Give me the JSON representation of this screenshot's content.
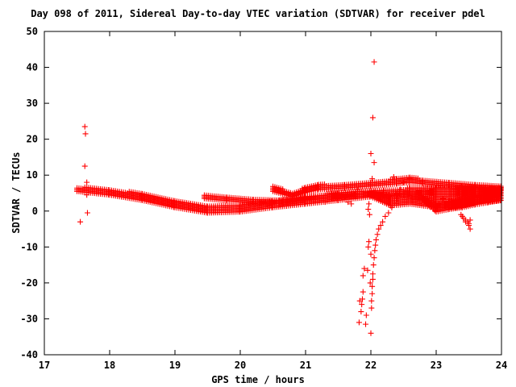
{
  "chart_data": {
    "type": "scatter",
    "title": "Day 098 of 2011, Sidereal Day-to-day VTEC variation (SDTVAR) for receiver pdel",
    "xlabel": "GPS time / hours",
    "ylabel": "SDTVAR / TECUs",
    "xlim": [
      17,
      24
    ],
    "ylim": [
      -40,
      50
    ],
    "x_ticks": [
      17,
      18,
      19,
      20,
      21,
      22,
      23,
      24
    ],
    "y_ticks": [
      -40,
      -30,
      -20,
      -10,
      0,
      10,
      20,
      30,
      40,
      50
    ],
    "marker": "+",
    "color": "#ff0000",
    "grid": false,
    "legend": "none",
    "series": [
      {
        "points": [
          [
            17.55,
            -3.0
          ],
          [
            17.62,
            23.5
          ],
          [
            17.63,
            21.5
          ],
          [
            17.62,
            12.5
          ],
          [
            17.65,
            8.0
          ],
          [
            17.66,
            -0.5
          ],
          [
            17.65,
            4.5
          ],
          [
            21.3,
            2.5
          ],
          [
            21.5,
            3.0
          ],
          [
            21.6,
            4.0
          ],
          [
            21.65,
            2.5
          ],
          [
            21.7,
            2.0
          ],
          [
            21.75,
            4.5
          ],
          [
            21.8,
            6.0
          ],
          [
            21.82,
            -31.0
          ],
          [
            21.83,
            -25.0
          ],
          [
            21.85,
            -28.0
          ],
          [
            21.86,
            -26.0
          ],
          [
            21.87,
            -24.5
          ],
          [
            21.88,
            -22.5
          ],
          [
            21.88,
            -18.0
          ],
          [
            21.9,
            -16.0
          ],
          [
            21.92,
            -31.5
          ],
          [
            21.93,
            -29.0
          ],
          [
            21.95,
            -16.5
          ],
          [
            21.96,
            -10.0
          ],
          [
            21.97,
            -8.5
          ],
          [
            21.97,
            2.0
          ],
          [
            21.96,
            0.5
          ],
          [
            21.98,
            -1.0
          ],
          [
            21.99,
            -20.0
          ],
          [
            22.0,
            -12.0
          ],
          [
            22.0,
            -34.0
          ],
          [
            22.01,
            -27.0
          ],
          [
            22.01,
            -25.0
          ],
          [
            22.02,
            -23.0
          ],
          [
            22.02,
            -21.0
          ],
          [
            22.03,
            -19.0
          ],
          [
            22.03,
            -17.5
          ],
          [
            22.04,
            -15.0
          ],
          [
            22.05,
            -13.0
          ],
          [
            22.06,
            -11.0
          ],
          [
            22.07,
            -9.5
          ],
          [
            22.08,
            -8.0
          ],
          [
            22.1,
            -6.5
          ],
          [
            22.12,
            -5.0
          ],
          [
            22.15,
            -4.0
          ],
          [
            22.18,
            -3.0
          ],
          [
            22.22,
            -1.5
          ],
          [
            22.27,
            -0.5
          ],
          [
            22.32,
            1.0
          ],
          [
            22.36,
            2.5
          ],
          [
            22.4,
            3.5
          ],
          [
            22.0,
            16.0
          ],
          [
            22.03,
            26.0
          ],
          [
            22.05,
            13.5
          ],
          [
            22.05,
            41.5
          ],
          [
            22.02,
            9.0
          ],
          [
            22.35,
            9.5
          ],
          [
            22.6,
            9.0
          ],
          [
            22.5,
            8.0
          ],
          [
            22.45,
            6.0
          ],
          [
            23.0,
            0.0
          ],
          [
            23.05,
            2.0
          ],
          [
            23.1,
            3.5
          ],
          [
            23.3,
            1.0
          ],
          [
            23.38,
            -1.0
          ],
          [
            23.42,
            -2.0
          ],
          [
            23.45,
            -2.5
          ],
          [
            23.48,
            -3.0
          ],
          [
            23.5,
            -4.0
          ],
          [
            23.52,
            -5.0
          ],
          [
            23.52,
            -2.5
          ],
          [
            23.5,
            -3.5
          ],
          [
            23.45,
            -3.0
          ],
          [
            23.4,
            -1.5
          ],
          [
            23.55,
            2.0
          ],
          [
            23.6,
            4.5
          ],
          [
            23.7,
            3.0
          ],
          [
            23.85,
            5.0
          ],
          [
            23.95,
            5.5
          ],
          [
            23.98,
            6.0
          ]
        ],
        "bands": [
          {
            "x": [
              17.5,
              18.0,
              18.5,
              19.0,
              19.5,
              20.0,
              20.5,
              21.0,
              21.5,
              22.0
            ],
            "ylow": [
              5.5,
              4.5,
              3.0,
              1.0,
              -0.5,
              -0.2,
              1.0,
              2.0,
              3.0,
              4.0
            ],
            "yhigh": [
              6.8,
              6.0,
              5.0,
              3.2,
              1.3,
              1.6,
              3.0,
              4.2,
              4.8,
              5.6
            ]
          },
          {
            "x": [
              19.45,
              19.8,
              20.2,
              20.6,
              21.0,
              21.4,
              21.8,
              22.2,
              22.6,
              23.0,
              23.4,
              24.0
            ],
            "ylow": [
              3.5,
              2.9,
              2.3,
              2.1,
              3.1,
              3.6,
              4.1,
              4.4,
              4.6,
              4.6,
              4.5,
              4.6
            ],
            "yhigh": [
              4.5,
              4.0,
              3.3,
              3.2,
              4.2,
              5.0,
              5.6,
              6.1,
              6.4,
              6.5,
              6.6,
              6.6
            ]
          },
          {
            "x": [
              20.5,
              20.8,
              21.0,
              21.2,
              21.6,
              22.0,
              22.4,
              22.6,
              22.8,
              23.2,
              23.6,
              24.0
            ],
            "ylow": [
              5.5,
              4.0,
              5.2,
              6.0,
              6.4,
              7.0,
              7.6,
              8.0,
              7.6,
              7.0,
              6.4,
              6.0
            ],
            "yhigh": [
              7.0,
              5.2,
              6.6,
              7.4,
              7.6,
              8.2,
              9.0,
              9.6,
              8.8,
              8.2,
              7.6,
              7.2
            ]
          },
          {
            "x": [
              22.0,
              22.3,
              22.6,
              23.0,
              23.3,
              23.6,
              24.0
            ],
            "ylow": [
              4.0,
              1.5,
              2.0,
              1.0,
              1.0,
              2.2,
              3.0
            ],
            "yhigh": [
              5.5,
              4.5,
              5.5,
              6.4,
              6.8,
              6.8,
              6.8
            ]
          },
          {
            "x": [
              22.6,
              22.8,
              23.0,
              23.2,
              23.4,
              23.6,
              23.8,
              24.0
            ],
            "ylow": [
              3.4,
              3.0,
              -0.2,
              0.5,
              1.0,
              1.8,
              2.4,
              3.0
            ],
            "yhigh": [
              4.4,
              4.0,
              2.0,
              3.0,
              3.5,
              4.2,
              5.2,
              6.0
            ]
          }
        ]
      }
    ]
  }
}
